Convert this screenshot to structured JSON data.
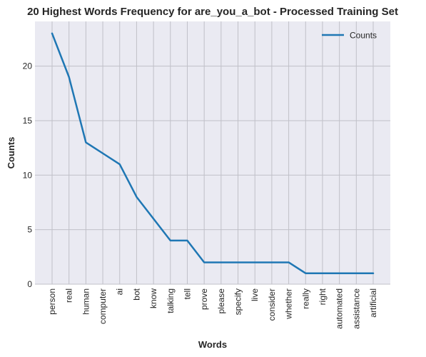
{
  "chart_data": {
    "type": "line",
    "title": "20 Highest Words Frequency for are_you_a_bot - Processed Training Set",
    "xlabel": "Words",
    "ylabel": "Counts",
    "categories": [
      "person",
      "real",
      "human",
      "computer",
      "ai",
      "bot",
      "know",
      "talking",
      "tell",
      "prove",
      "please",
      "specify",
      "live",
      "consider",
      "whether",
      "really",
      "right",
      "automated",
      "assistance",
      "artificial"
    ],
    "series": [
      {
        "name": "Counts",
        "values": [
          23,
          19,
          13,
          12,
          11,
          8,
          6,
          4,
          4,
          2,
          2,
          2,
          2,
          2,
          2,
          1,
          1,
          1,
          1,
          1
        ],
        "color": "#1f77b4"
      }
    ],
    "ylim": [
      0,
      24.1
    ],
    "yticks": [
      0,
      5,
      10,
      15,
      20
    ],
    "grid": true,
    "legend_position": "top-right",
    "background_color": "#eaeaf2",
    "grid_color": "#c0c0c8"
  }
}
